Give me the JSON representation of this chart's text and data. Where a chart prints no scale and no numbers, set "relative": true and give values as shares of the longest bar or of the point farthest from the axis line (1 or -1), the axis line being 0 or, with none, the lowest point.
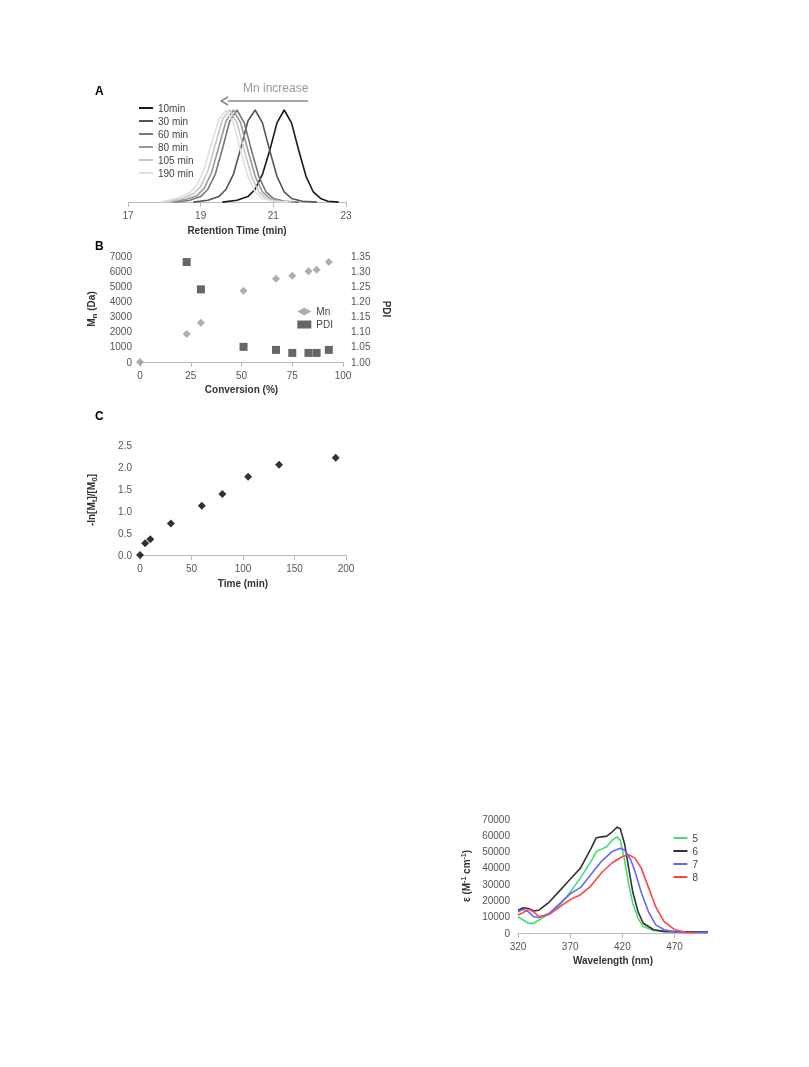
{
  "chart_data": [
    {
      "type": "line",
      "title": "A",
      "xlabel": "Retention Time (min)",
      "relative": true,
      "xlim": [
        17,
        23
      ],
      "xticks": [
        17,
        19,
        21,
        23
      ],
      "grid": false,
      "legend": "top left",
      "marker": "none",
      "annotations": [
        "Mn increase"
      ],
      "series": [
        {
          "name": "10min",
          "color": "#1a1a1a",
          "x": [
            19.6,
            20.0,
            20.3,
            20.5,
            20.7,
            20.9,
            21.1,
            21.3,
            21.5,
            21.7,
            21.9,
            22.1,
            22.3,
            22.5,
            22.8
          ],
          "values": [
            0,
            0.02,
            0.06,
            0.14,
            0.3,
            0.56,
            0.86,
            1,
            0.86,
            0.56,
            0.28,
            0.11,
            0.04,
            0.01,
            0
          ]
        },
        {
          "name": "30 min",
          "color": "#555555",
          "x": [
            18.8,
            19.2,
            19.5,
            19.7,
            19.9,
            20.1,
            20.3,
            20.5,
            20.7,
            20.9,
            21.1,
            21.3,
            21.5,
            21.8,
            22.2
          ],
          "values": [
            0,
            0.02,
            0.06,
            0.14,
            0.3,
            0.58,
            0.88,
            1,
            0.86,
            0.56,
            0.28,
            0.11,
            0.04,
            0.01,
            0
          ]
        },
        {
          "name": "60 min",
          "color": "#777777",
          "x": [
            18.3,
            18.7,
            19.0,
            19.2,
            19.4,
            19.6,
            19.8,
            20.0,
            20.2,
            20.4,
            20.6,
            20.8,
            21.0,
            21.3,
            21.7
          ],
          "values": [
            0,
            0.02,
            0.06,
            0.14,
            0.3,
            0.58,
            0.88,
            1,
            0.86,
            0.56,
            0.28,
            0.11,
            0.04,
            0.01,
            0
          ]
        },
        {
          "name": "80 min",
          "color": "#999999",
          "x": [
            18.2,
            18.6,
            18.9,
            19.1,
            19.3,
            19.5,
            19.7,
            19.9,
            20.1,
            20.3,
            20.5,
            20.7,
            20.9,
            21.2,
            21.6
          ],
          "values": [
            0,
            0.03,
            0.07,
            0.15,
            0.32,
            0.6,
            0.88,
            1,
            0.86,
            0.56,
            0.28,
            0.11,
            0.04,
            0.01,
            0
          ]
        },
        {
          "name": "105 min",
          "color": "#c8c8c8",
          "x": [
            18.0,
            18.5,
            18.8,
            19.0,
            19.2,
            19.4,
            19.6,
            19.8,
            20.0,
            20.2,
            20.4,
            20.6,
            20.8,
            21.1,
            21.5
          ],
          "values": [
            0,
            0.04,
            0.09,
            0.17,
            0.34,
            0.62,
            0.9,
            1,
            0.86,
            0.56,
            0.28,
            0.11,
            0.04,
            0.01,
            0
          ]
        },
        {
          "name": "190 min",
          "color": "#e0e0e0",
          "x": [
            17.9,
            18.4,
            18.7,
            18.9,
            19.1,
            19.3,
            19.5,
            19.7,
            19.9,
            20.1,
            20.3,
            20.5,
            20.7,
            21.0,
            21.4
          ],
          "values": [
            0,
            0.05,
            0.1,
            0.19,
            0.36,
            0.64,
            0.9,
            1,
            0.86,
            0.56,
            0.28,
            0.11,
            0.04,
            0.01,
            0
          ]
        }
      ]
    },
    {
      "type": "scatter",
      "title": "B",
      "xlabel": "Conversion (%)",
      "ylabel": "M$_{n}$ (Da)",
      "y2label": "PDI",
      "xlim": [
        0,
        100
      ],
      "xticks": [
        0,
        25,
        50,
        75,
        100
      ],
      "ylim": [
        0,
        7000
      ],
      "yticks": [
        0,
        1000,
        2000,
        3000,
        4000,
        5000,
        6000,
        7000
      ],
      "y2lim": [
        1.0,
        1.35
      ],
      "y2ticks": [
        {
          "value": 1.0,
          "label": "1.00"
        },
        {
          "value": 1.05,
          "label": "1.05"
        },
        {
          "value": 1.1,
          "label": "1.10"
        },
        {
          "value": 1.15,
          "label": "1.15"
        },
        {
          "value": 1.2,
          "label": "1.20"
        },
        {
          "value": 1.25,
          "label": "1.25"
        },
        {
          "value": 1.3,
          "label": "1.30"
        },
        {
          "value": 1.35,
          "label": "1.35"
        }
      ],
      "grid": false,
      "legend": "right",
      "series": [
        {
          "name": "Mn",
          "color": "#9a9a9a",
          "marker": "diamond",
          "x": [
            0,
            23,
            30,
            51,
            67,
            75,
            83,
            87,
            93
          ],
          "values": [
            0,
            1850,
            2600,
            4700,
            5500,
            5700,
            6000,
            6100,
            6600
          ]
        },
        {
          "name": "PDI",
          "color": "#404040",
          "marker": "square",
          "axis": "y2",
          "x": [
            23,
            30,
            51,
            67,
            75,
            83,
            87,
            93
          ],
          "values": [
            1.33,
            1.24,
            1.05,
            1.04,
            1.03,
            1.03,
            1.03,
            1.04
          ]
        }
      ]
    },
    {
      "type": "scatter",
      "title": "C",
      "xlabel": "Time (min)",
      "ylabel": "-ln[M$_{t}$]/[M$_{0}$]",
      "xlim": [
        0,
        200
      ],
      "xticks": [
        0,
        50,
        100,
        150,
        200
      ],
      "ylim": [
        0,
        2.5
      ],
      "yticks": [
        {
          "value": 0,
          "label": "0.0"
        },
        {
          "value": 0.5,
          "label": "0.5"
        },
        {
          "value": 1,
          "label": "1.0"
        },
        {
          "value": 1.5,
          "label": "1.5"
        },
        {
          "value": 2,
          "label": "2.0"
        },
        {
          "value": 2.5,
          "label": "2.5"
        }
      ],
      "grid": false,
      "legend": false,
      "marker": "diamond",
      "series": [
        {
          "color": "#000000",
          "x": [
            0,
            5,
            10,
            30,
            60,
            80,
            105,
            135,
            190
          ],
          "values": [
            0,
            0.27,
            0.36,
            0.72,
            1.12,
            1.39,
            1.78,
            2.05,
            2.21
          ]
        }
      ]
    },
    {
      "type": "line",
      "xlabel": "Wavelength (nm)",
      "ylabel": "ε (M$^{-1}$ cm$^{-1}$)",
      "xlim": [
        320,
        502
      ],
      "xticks": [
        320,
        370,
        420,
        470
      ],
      "ylim": [
        0,
        70000
      ],
      "yticks": [
        0,
        10000,
        20000,
        30000,
        40000,
        50000,
        60000,
        70000
      ],
      "grid": false,
      "legend": "top right",
      "marker": "none",
      "series": [
        {
          "name": "5",
          "color": "#44dd77",
          "x": [
            320,
            325,
            330,
            335,
            340,
            345,
            350,
            360,
            370,
            380,
            390,
            395,
            400,
            405,
            410,
            415,
            418,
            422,
            426,
            430,
            435,
            440,
            450,
            460,
            480,
            502
          ],
          "values": [
            10000,
            8000,
            6000,
            6000,
            8000,
            10000,
            12000,
            17000,
            25000,
            34000,
            44000,
            50000,
            51500,
            53000,
            57000,
            59000,
            57000,
            45000,
            30000,
            18000,
            9000,
            4000,
            1500,
            800,
            500,
            500
          ]
        },
        {
          "name": "6",
          "color": "#333333",
          "x": [
            320,
            325,
            330,
            335,
            340,
            350,
            360,
            370,
            380,
            390,
            395,
            400,
            405,
            410,
            415,
            418,
            422,
            426,
            430,
            435,
            440,
            450,
            460,
            480,
            502
          ],
          "values": [
            14000,
            15500,
            15000,
            13500,
            14000,
            19000,
            26000,
            33000,
            40000,
            52000,
            58500,
            59000,
            59500,
            62000,
            65000,
            64000,
            55000,
            40000,
            25000,
            13000,
            6000,
            2000,
            1000,
            700,
            600
          ]
        },
        {
          "name": "7",
          "color": "#6666ff",
          "x": [
            320,
            325,
            330,
            335,
            340,
            350,
            360,
            370,
            380,
            390,
            400,
            410,
            418,
            422,
            428,
            432,
            438,
            445,
            452,
            460,
            470,
            480,
            502
          ],
          "values": [
            13000,
            14500,
            13000,
            10000,
            9500,
            12000,
            18000,
            24000,
            28000,
            36000,
            44000,
            50000,
            52000,
            51000,
            45000,
            38000,
            25000,
            13000,
            5000,
            2000,
            700,
            300,
            200
          ]
        },
        {
          "name": "8",
          "color": "#ff4444",
          "x": [
            320,
            325,
            330,
            335,
            340,
            350,
            360,
            370,
            380,
            390,
            400,
            410,
            420,
            426,
            432,
            438,
            445,
            452,
            460,
            470,
            480,
            490
          ],
          "values": [
            11000,
            12500,
            14500,
            13000,
            10000,
            11500,
            16000,
            20500,
            23500,
            29000,
            37000,
            43000,
            47000,
            48000,
            46000,
            40000,
            28000,
            16000,
            7000,
            2000,
            500,
            0
          ]
        }
      ]
    }
  ]
}
